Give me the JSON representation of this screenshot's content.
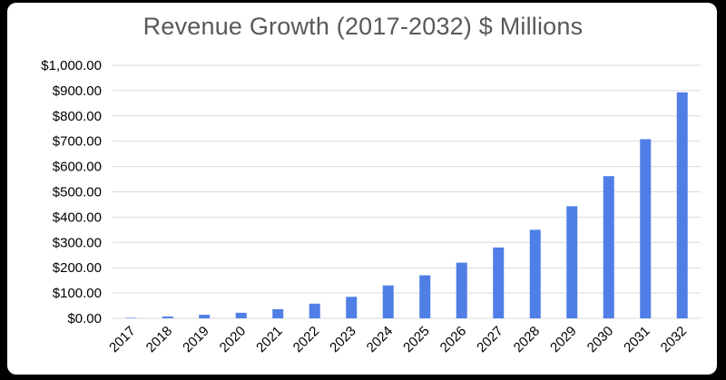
{
  "chart_data": {
    "type": "bar",
    "title": "Revenue Growth (2017-2032) $ Millions",
    "xlabel": "",
    "ylabel": "",
    "categories": [
      "2017",
      "2018",
      "2019",
      "2020",
      "2021",
      "2022",
      "2023",
      "2024",
      "2025",
      "2026",
      "2027",
      "2028",
      "2029",
      "2030",
      "2031",
      "2032"
    ],
    "values": [
      2,
      7,
      14,
      22,
      36,
      58,
      85,
      130,
      170,
      220,
      280,
      350,
      443,
      562,
      708,
      893
    ],
    "ylim": [
      0,
      1000
    ],
    "yticks": [
      "$0.00",
      "$100.00",
      "$200.00",
      "$300.00",
      "$400.00",
      "$500.00",
      "$600.00",
      "$700.00",
      "$800.00",
      "$900.00",
      "$1,000.00"
    ],
    "grid": true,
    "legend": "none",
    "bar_color": "#4F7FE6",
    "grid_color": "#D9D9D9"
  }
}
